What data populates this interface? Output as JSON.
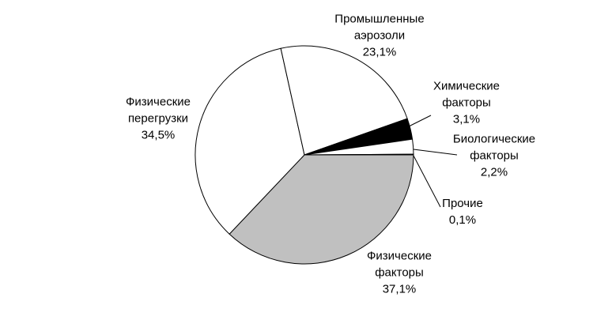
{
  "chart_data": {
    "type": "pie",
    "categories": [
      "Физические факторы",
      "Физические перегрузки",
      "Промышленные аэрозоли",
      "Химические факторы",
      "Биологические факторы",
      "Прочие"
    ],
    "values": [
      37.1,
      34.5,
      23.1,
      3.1,
      2.2,
      0.1
    ],
    "value_labels": [
      "37,1%",
      "34,5%",
      "23,1%",
      "3,1%",
      "2,2%",
      "0,1%"
    ],
    "colors": [
      "#c0c0c0",
      "#ffffff",
      "#ffffff",
      "#000000",
      "#ffffff",
      "#ffffff"
    ]
  }
}
